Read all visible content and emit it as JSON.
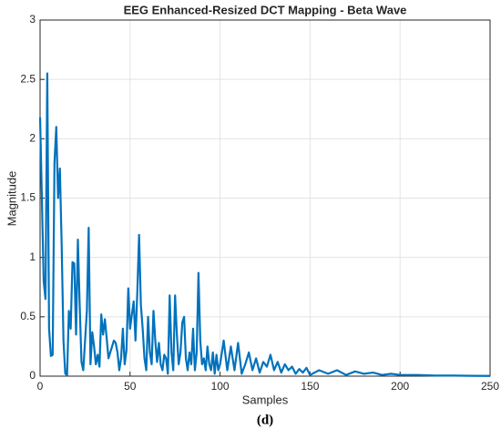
{
  "chart_data": {
    "type": "line",
    "title": "EEG Enhanced-Resized DCT Mapping - Beta Wave",
    "x_label": "Samples",
    "y_label": "Magnitude",
    "caption": "(d)",
    "x": [
      0,
      1,
      2,
      3,
      4,
      5,
      6,
      7,
      8,
      9,
      10,
      11,
      12,
      13,
      14,
      15,
      16,
      17,
      18,
      19,
      20,
      21,
      22,
      23,
      24,
      25,
      26,
      27,
      28,
      29,
      30,
      31,
      32,
      33,
      34,
      35,
      36,
      37,
      38,
      39,
      40,
      41,
      42,
      43,
      44,
      45,
      46,
      47,
      48,
      49,
      50,
      51,
      52,
      53,
      54,
      55,
      56,
      57,
      58,
      59,
      60,
      61,
      62,
      63,
      64,
      65,
      66,
      67,
      68,
      69,
      70,
      71,
      72,
      73,
      74,
      75,
      76,
      77,
      78,
      79,
      80,
      81,
      82,
      83,
      84,
      85,
      86,
      87,
      88,
      89,
      90,
      91,
      92,
      93,
      94,
      95,
      96,
      97,
      98,
      99,
      100,
      102,
      104,
      106,
      108,
      110,
      112,
      114,
      116,
      118,
      120,
      122,
      124,
      126,
      128,
      130,
      132,
      134,
      136,
      138,
      140,
      142,
      144,
      146,
      148,
      150,
      155,
      160,
      165,
      170,
      175,
      180,
      185,
      190,
      195,
      200,
      210,
      220,
      230,
      240,
      250
    ],
    "series": [
      {
        "name": "Beta Wave",
        "color": "#0072BD",
        "values": [
          2.18,
          1.5,
          0.8,
          0.65,
          2.55,
          0.4,
          0.17,
          0.18,
          1.8,
          2.1,
          1.5,
          1.75,
          1.1,
          0.3,
          0.02,
          0.01,
          0.55,
          0.4,
          0.96,
          0.95,
          0.35,
          1.15,
          0.6,
          0.12,
          0.05,
          0.3,
          0.55,
          1.25,
          0.1,
          0.37,
          0.25,
          0.1,
          0.18,
          0.08,
          0.52,
          0.35,
          0.48,
          0.32,
          0.15,
          0.2,
          0.25,
          0.3,
          0.28,
          0.2,
          0.05,
          0.15,
          0.4,
          0.1,
          0.22,
          0.74,
          0.4,
          0.52,
          0.63,
          0.3,
          0.7,
          1.19,
          0.6,
          0.4,
          0.15,
          0.05,
          0.5,
          0.2,
          0.1,
          0.55,
          0.3,
          0.12,
          0.28,
          0.1,
          0.05,
          0.18,
          0.15,
          0.02,
          0.68,
          0.2,
          0.05,
          0.68,
          0.35,
          0.1,
          0.2,
          0.45,
          0.5,
          0.15,
          0.05,
          0.2,
          0.1,
          0.4,
          0.05,
          0.2,
          0.87,
          0.3,
          0.1,
          0.15,
          0.05,
          0.25,
          0.1,
          0.05,
          0.2,
          0.02,
          0.18,
          0.05,
          0.1,
          0.3,
          0.05,
          0.25,
          0.05,
          0.28,
          0.02,
          0.1,
          0.2,
          0.05,
          0.15,
          0.03,
          0.12,
          0.08,
          0.18,
          0.05,
          0.12,
          0.03,
          0.1,
          0.05,
          0.08,
          0.02,
          0.06,
          0.03,
          0.07,
          0.01,
          0.05,
          0.02,
          0.05,
          0.01,
          0.04,
          0.02,
          0.03,
          0.01,
          0.02,
          0.01,
          0.01,
          0.005,
          0.005,
          0.003,
          0.002
        ]
      }
    ],
    "xlim": [
      0,
      250
    ],
    "xticks": [
      0,
      50,
      100,
      150,
      200,
      250
    ],
    "ylim": [
      0,
      3
    ],
    "yticks": [
      0,
      0.5,
      1,
      1.5,
      2,
      2.5,
      3
    ],
    "grid": true
  }
}
